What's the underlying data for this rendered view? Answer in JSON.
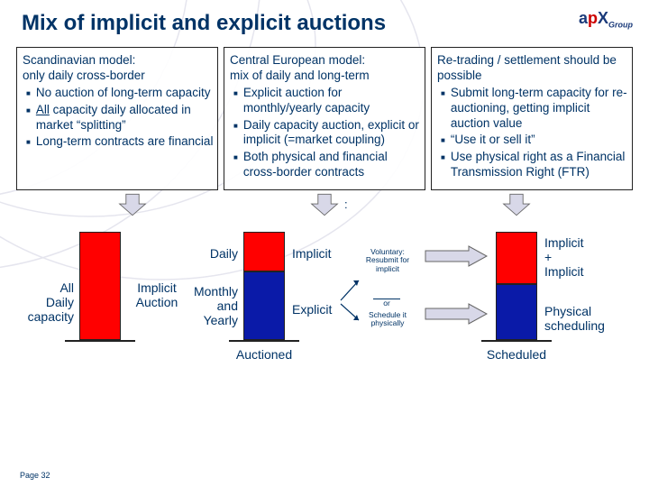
{
  "title": "Mix of implicit and explicit auctions",
  "logo": {
    "a": "a",
    "p": "p",
    "x": "X",
    "group": "Group"
  },
  "columns": [
    {
      "heading": "Scandinavian model:\nonly daily cross-border",
      "bullets": [
        "No auction of long-term capacity",
        "<u>All</u> capacity daily allocated in market “splitting”",
        "Long-term contracts are financial"
      ]
    },
    {
      "heading": "Central European model:\nmix of daily and long-term",
      "bullets": [
        "Explicit auction for monthly/yearly capacity",
        "Daily capacity auction, explicit or implicit (=market coupling)",
        "Both physical and financial cross-border contracts"
      ]
    },
    {
      "heading": "Re-trading / settlement should be possible",
      "bullets": [
        "Submit long-term capacity for re-auctioning, getting implicit auction value",
        "“Use it or sell it”",
        "Use physical right as a Financial Transmission Right (FTR)"
      ]
    }
  ],
  "diagram": {
    "colors": {
      "red": "#ff0000",
      "blue": "#0a1aa8",
      "arrow_fill": "#d8d8e8",
      "arrow_stroke": "#666",
      "baseline": "#222222",
      "text": "#003366"
    },
    "left": {
      "label": "All\nDaily\ncapacity",
      "aux_label": "Implicit\nAuction"
    },
    "center": {
      "top_left": "Daily",
      "top_right": "Implicit",
      "bottom_left": "Monthly\nand\nYearly",
      "bottom_right": "Explicit",
      "below": "Auctioned",
      "tiny_top": "Voluntary:\nResubmit for\nimplicit",
      "tiny_or": "or",
      "tiny_bot": "Schedule it\nphysically"
    },
    "right": {
      "top": "Implicit\n+\nImplicit",
      "bottom": "Physical\nscheduling",
      "below": "Scheduled"
    }
  },
  "page": "Page 32"
}
